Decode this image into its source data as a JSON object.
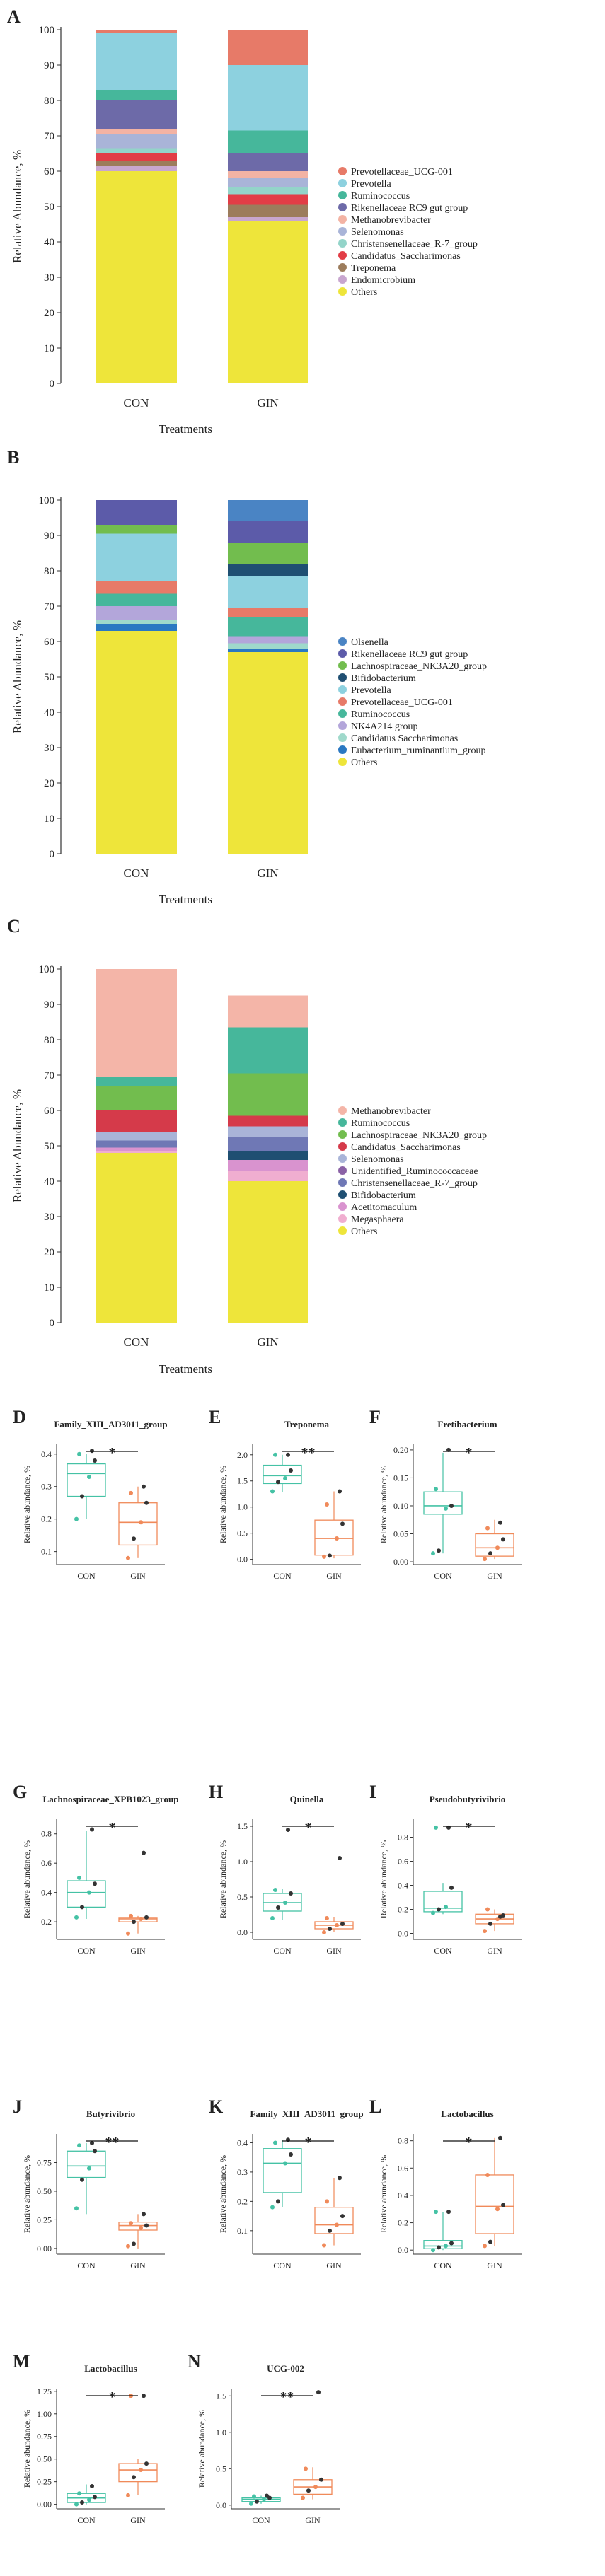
{
  "colors": {
    "CON": "#45c2a5",
    "GIN": "#f08a5a"
  },
  "chart_data": [
    {
      "type": "stacked-bar",
      "panel": "A",
      "xlabel": "Treatments",
      "ylabel": "Relative Abundance, %",
      "ylim": [
        0,
        100
      ],
      "yticks": [
        0,
        10,
        20,
        30,
        40,
        50,
        60,
        70,
        80,
        90,
        100
      ],
      "categories": [
        "CON",
        "GIN"
      ],
      "series": [
        {
          "name": "Others",
          "color": "#eee53a",
          "values": [
            60,
            46
          ]
        },
        {
          "name": "Endomicrobium",
          "color": "#c8a6cf",
          "values": [
            1.5,
            1
          ]
        },
        {
          "name": "Treponema",
          "color": "#9c7c5c",
          "values": [
            1.5,
            3.5
          ]
        },
        {
          "name": "Candidatus_Saccharimonas",
          "color": "#e23d46",
          "values": [
            2,
            3
          ]
        },
        {
          "name": "Christensenellaceae_R-7_group",
          "color": "#93d4c9",
          "values": [
            1.5,
            2
          ]
        },
        {
          "name": "Selenomonas",
          "color": "#a9b4d8",
          "values": [
            4,
            2.5
          ]
        },
        {
          "name": "Methanobrevibacter",
          "color": "#f3b3a4",
          "values": [
            1.5,
            2
          ]
        },
        {
          "name": "Rikenellaceae RC9 gut group",
          "color": "#6d6aa8",
          "values": [
            8,
            5
          ]
        },
        {
          "name": "Ruminococcus",
          "color": "#46b79b",
          "values": [
            3,
            6.5
          ]
        },
        {
          "name": "Prevotella",
          "color": "#8dd1df",
          "values": [
            16,
            18.5
          ]
        },
        {
          "name": "Prevotellaceae_UCG-001",
          "color": "#e77a68",
          "values": [
            1,
            10
          ]
        }
      ]
    },
    {
      "type": "stacked-bar",
      "panel": "B",
      "xlabel": "Treatments",
      "ylabel": "Relative Abundance, %",
      "ylim": [
        0,
        100
      ],
      "yticks": [
        0,
        10,
        20,
        30,
        40,
        50,
        60,
        70,
        80,
        90,
        100
      ],
      "categories": [
        "CON",
        "GIN"
      ],
      "series": [
        {
          "name": "Others",
          "color": "#eee53a",
          "values": [
            63,
            57
          ]
        },
        {
          "name": "Eubacterium_ruminantium_group",
          "color": "#2a78c2",
          "values": [
            2,
            1
          ]
        },
        {
          "name": "Candidatus Saccharimonas",
          "color": "#9fd9cb",
          "values": [
            1,
            1.5
          ]
        },
        {
          "name": "NK4A214 group",
          "color": "#b3a6da",
          "values": [
            4,
            2
          ]
        },
        {
          "name": "Ruminococcus",
          "color": "#46b79b",
          "values": [
            3.5,
            5.5
          ]
        },
        {
          "name": "Prevotellaceae_UCG-001",
          "color": "#e77a68",
          "values": [
            3.5,
            2.5
          ]
        },
        {
          "name": "Prevotella",
          "color": "#8dd1df",
          "values": [
            13.5,
            9
          ]
        },
        {
          "name": "Bifidobacterium",
          "color": "#1f4f72",
          "values": [
            0,
            3.5
          ]
        },
        {
          "name": "Lachnospiraceae_NK3A20_group",
          "color": "#72bd4e",
          "values": [
            2.5,
            6
          ]
        },
        {
          "name": "Rikenellaceae RC9 gut group",
          "color": "#5c5ba9",
          "values": [
            7,
            6
          ]
        },
        {
          "name": "Olsenella",
          "color": "#4a84c4",
          "values": [
            0,
            6
          ]
        }
      ]
    },
    {
      "type": "stacked-bar",
      "panel": "C",
      "xlabel": "Treatments",
      "ylabel": "Relative Abundance, %",
      "ylim": [
        0,
        100
      ],
      "yticks": [
        0,
        10,
        20,
        30,
        40,
        50,
        60,
        70,
        80,
        90,
        100
      ],
      "categories": [
        "CON",
        "GIN"
      ],
      "series": [
        {
          "name": "Others",
          "color": "#eee53a",
          "values": [
            48,
            40
          ]
        },
        {
          "name": "Megasphaera",
          "color": "#f0aed0",
          "values": [
            0.5,
            3
          ]
        },
        {
          "name": "Acetitomaculum",
          "color": "#d993cf",
          "values": [
            1,
            3
          ]
        },
        {
          "name": "Bifidobacterium",
          "color": "#1f4f72",
          "values": [
            0,
            2.5
          ]
        },
        {
          "name": "Christensenellaceae_R-7_group",
          "color": "#6f78b5",
          "values": [
            2,
            4
          ]
        },
        {
          "name": "Unidentified_Ruminococcaceae",
          "color": "#8b62a6",
          "values": [
            0,
            0
          ]
        },
        {
          "name": "Selenomonas",
          "color": "#a9b4d8",
          "values": [
            2.5,
            3
          ]
        },
        {
          "name": "Candidatus_Saccharimonas",
          "color": "#d53a4a",
          "values": [
            6,
            3
          ]
        },
        {
          "name": "Lachnospiraceae_NK3A20_group",
          "color": "#72bd4e",
          "values": [
            7,
            12
          ]
        },
        {
          "name": "Ruminococcus",
          "color": "#46b79b",
          "values": [
            2.5,
            13
          ]
        },
        {
          "name": "Methanobrevibacter",
          "color": "#f4b5a8",
          "values": [
            30.5,
            9
          ]
        }
      ]
    },
    {
      "type": "box",
      "panel": "D",
      "title": "Family_XIII_AD3011_group",
      "ylabel": "Relative abundance, %",
      "categories": [
        "CON",
        "GIN"
      ],
      "ylim": [
        0.06,
        0.43
      ],
      "yticks": [
        0.1,
        0.2,
        0.3,
        0.4
      ],
      "signif": "*",
      "groups": [
        {
          "name": "CON",
          "q1": 0.27,
          "median": 0.34,
          "q3": 0.37,
          "whisker_low": 0.2,
          "whisker_high": 0.4,
          "points": [
            0.2,
            0.27,
            0.33,
            0.38,
            0.4,
            0.41
          ]
        },
        {
          "name": "GIN",
          "q1": 0.12,
          "median": 0.19,
          "q3": 0.25,
          "whisker_low": 0.08,
          "whisker_high": 0.3,
          "points": [
            0.08,
            0.14,
            0.19,
            0.25,
            0.28,
            0.3
          ]
        }
      ]
    },
    {
      "type": "box",
      "panel": "E",
      "title": "Treponema",
      "ylabel": "Relative abundance, %",
      "categories": [
        "CON",
        "GIN"
      ],
      "ylim": [
        -0.1,
        2.2
      ],
      "yticks": [
        0.0,
        0.5,
        1.0,
        1.5,
        2.0
      ],
      "signif": "**",
      "groups": [
        {
          "name": "CON",
          "q1": 1.45,
          "median": 1.6,
          "q3": 1.8,
          "whisker_low": 1.28,
          "whisker_high": 2.0,
          "points": [
            1.3,
            1.48,
            1.55,
            1.7,
            2.0,
            2.0
          ]
        },
        {
          "name": "GIN",
          "q1": 0.08,
          "median": 0.4,
          "q3": 0.75,
          "whisker_low": 0.02,
          "whisker_high": 1.3,
          "points": [
            0.05,
            0.07,
            0.4,
            0.68,
            1.05,
            1.3
          ]
        }
      ]
    },
    {
      "type": "box",
      "panel": "F",
      "title": "Fretibacterium",
      "ylabel": "Relative abundance, %",
      "categories": [
        "CON",
        "GIN"
      ],
      "ylim": [
        -0.005,
        0.21
      ],
      "yticks": [
        0.0,
        0.05,
        0.1,
        0.15,
        0.2
      ],
      "signif": "*",
      "groups": [
        {
          "name": "CON",
          "q1": 0.085,
          "median": 0.1,
          "q3": 0.125,
          "whisker_low": 0.015,
          "whisker_high": 0.195,
          "points": [
            0.015,
            0.02,
            0.095,
            0.1,
            0.13,
            0.2
          ]
        },
        {
          "name": "GIN",
          "q1": 0.01,
          "median": 0.025,
          "q3": 0.05,
          "whisker_low": 0.005,
          "whisker_high": 0.075,
          "points": [
            0.005,
            0.015,
            0.025,
            0.04,
            0.06,
            0.07
          ]
        }
      ]
    },
    {
      "type": "box",
      "panel": "G",
      "title": "Lachnospiraceae_XPB1023_group",
      "ylabel": "Relative abundance, %",
      "categories": [
        "CON",
        "GIN"
      ],
      "ylim": [
        0.08,
        0.9
      ],
      "yticks": [
        0.2,
        0.4,
        0.6,
        0.8
      ],
      "signif": "*",
      "groups": [
        {
          "name": "CON",
          "q1": 0.3,
          "median": 0.4,
          "q3": 0.48,
          "whisker_low": 0.22,
          "whisker_high": 0.82,
          "points": [
            0.23,
            0.3,
            0.4,
            0.46,
            0.5,
            0.83
          ]
        },
        {
          "name": "GIN",
          "q1": 0.2,
          "median": 0.22,
          "q3": 0.23,
          "whisker_low": 0.12,
          "whisker_high": 0.24,
          "points": [
            0.12,
            0.2,
            0.22,
            0.23,
            0.24,
            0.67
          ]
        }
      ]
    },
    {
      "type": "box",
      "panel": "H",
      "title": "Quinella",
      "ylabel": "Relative abundance, %",
      "categories": [
        "CON",
        "GIN"
      ],
      "ylim": [
        -0.1,
        1.6
      ],
      "yticks": [
        0.0,
        0.5,
        1.0,
        1.5
      ],
      "signif": "*",
      "groups": [
        {
          "name": "CON",
          "q1": 0.3,
          "median": 0.42,
          "q3": 0.55,
          "whisker_low": 0.18,
          "whisker_high": 0.62,
          "points": [
            0.2,
            0.35,
            0.42,
            0.55,
            0.6,
            1.45
          ]
        },
        {
          "name": "GIN",
          "q1": 0.05,
          "median": 0.1,
          "q3": 0.15,
          "whisker_low": 0.0,
          "whisker_high": 0.22,
          "points": [
            0.0,
            0.05,
            0.1,
            0.12,
            0.2,
            1.05
          ]
        }
      ]
    },
    {
      "type": "box",
      "panel": "I",
      "title": "Pseudobutyrivibrio",
      "ylabel": "Relative abundance, %",
      "categories": [
        "CON",
        "GIN"
      ],
      "ylim": [
        -0.05,
        0.95
      ],
      "yticks": [
        0.0,
        0.2,
        0.4,
        0.6,
        0.8
      ],
      "signif": "*",
      "groups": [
        {
          "name": "CON",
          "q1": 0.18,
          "median": 0.21,
          "q3": 0.35,
          "whisker_low": 0.16,
          "whisker_high": 0.42,
          "points": [
            0.17,
            0.2,
            0.22,
            0.38,
            0.88,
            0.88
          ]
        },
        {
          "name": "GIN",
          "q1": 0.08,
          "median": 0.12,
          "q3": 0.16,
          "whisker_low": 0.02,
          "whisker_high": 0.2,
          "points": [
            0.02,
            0.08,
            0.12,
            0.15,
            0.2,
            0.14
          ]
        }
      ]
    },
    {
      "type": "box",
      "panel": "J",
      "title": "Butyrivibrio",
      "ylabel": "Relative abundance, %",
      "categories": [
        "CON",
        "GIN"
      ],
      "ylim": [
        -0.05,
        1.0
      ],
      "yticks": [
        0.0,
        0.25,
        0.5,
        0.75
      ],
      "signif": "**",
      "groups": [
        {
          "name": "CON",
          "q1": 0.62,
          "median": 0.72,
          "q3": 0.85,
          "whisker_low": 0.3,
          "whisker_high": 0.92,
          "points": [
            0.35,
            0.6,
            0.7,
            0.85,
            0.9,
            0.92
          ]
        },
        {
          "name": "GIN",
          "q1": 0.16,
          "median": 0.2,
          "q3": 0.23,
          "whisker_low": 0.0,
          "whisker_high": 0.3,
          "points": [
            0.02,
            0.04,
            0.18,
            0.2,
            0.22,
            0.3
          ]
        }
      ]
    },
    {
      "type": "box",
      "panel": "K",
      "title": "Family_XIII_AD3011_group",
      "ylabel": "Relative abundance, %",
      "categories": [
        "CON",
        "GIN"
      ],
      "ylim": [
        0.02,
        0.43
      ],
      "yticks": [
        0.1,
        0.2,
        0.3,
        0.4
      ],
      "signif": "*",
      "groups": [
        {
          "name": "CON",
          "q1": 0.23,
          "median": 0.33,
          "q3": 0.38,
          "whisker_low": 0.18,
          "whisker_high": 0.41,
          "points": [
            0.18,
            0.2,
            0.33,
            0.36,
            0.4,
            0.41
          ]
        },
        {
          "name": "GIN",
          "q1": 0.09,
          "median": 0.12,
          "q3": 0.18,
          "whisker_low": 0.05,
          "whisker_high": 0.28,
          "points": [
            0.05,
            0.1,
            0.12,
            0.15,
            0.2,
            0.28
          ]
        }
      ]
    },
    {
      "type": "box",
      "panel": "L",
      "title": "Lactobacillus",
      "ylabel": "Relative abundance, %",
      "categories": [
        "CON",
        "GIN"
      ],
      "ylim": [
        -0.03,
        0.85
      ],
      "yticks": [
        0.0,
        0.2,
        0.4,
        0.6,
        0.8
      ],
      "signif": "*",
      "groups": [
        {
          "name": "CON",
          "q1": 0.01,
          "median": 0.03,
          "q3": 0.07,
          "whisker_low": 0.0,
          "whisker_high": 0.28,
          "points": [
            0.0,
            0.02,
            0.03,
            0.05,
            0.28,
            0.28
          ]
        },
        {
          "name": "GIN",
          "q1": 0.12,
          "median": 0.32,
          "q3": 0.55,
          "whisker_low": 0.03,
          "whisker_high": 0.82,
          "points": [
            0.03,
            0.06,
            0.3,
            0.33,
            0.55,
            0.82
          ]
        }
      ]
    },
    {
      "type": "box",
      "panel": "M",
      "title": "Lactobacillus",
      "ylabel": "Relative abundance, %",
      "categories": [
        "CON",
        "GIN"
      ],
      "ylim": [
        -0.05,
        1.28
      ],
      "yticks": [
        0.0,
        0.25,
        0.5,
        0.75,
        1.0,
        1.25
      ],
      "signif": "*",
      "groups": [
        {
          "name": "CON",
          "q1": 0.02,
          "median": 0.07,
          "q3": 0.12,
          "whisker_low": 0.0,
          "whisker_high": 0.22,
          "points": [
            0.0,
            0.02,
            0.05,
            0.08,
            0.12,
            0.2
          ]
        },
        {
          "name": "GIN",
          "q1": 0.25,
          "median": 0.38,
          "q3": 0.45,
          "whisker_low": 0.1,
          "whisker_high": 0.5,
          "points": [
            0.1,
            0.3,
            0.38,
            0.45,
            1.2,
            1.2
          ]
        }
      ]
    },
    {
      "type": "box",
      "panel": "N",
      "title": "UCG-002",
      "ylabel": "Relative abundance, %",
      "categories": [
        "CON",
        "GIN"
      ],
      "ylim": [
        -0.05,
        1.6
      ],
      "yticks": [
        0.0,
        0.5,
        1.0,
        1.5
      ],
      "signif": "**",
      "groups": [
        {
          "name": "CON",
          "q1": 0.05,
          "median": 0.08,
          "q3": 0.1,
          "whisker_low": 0.02,
          "whisker_high": 0.13,
          "points": [
            0.02,
            0.05,
            0.08,
            0.1,
            0.12,
            0.13
          ]
        },
        {
          "name": "GIN",
          "q1": 0.15,
          "median": 0.25,
          "q3": 0.35,
          "whisker_low": 0.08,
          "whisker_high": 0.52,
          "points": [
            0.1,
            0.2,
            0.25,
            0.35,
            0.5,
            1.55
          ]
        }
      ]
    }
  ]
}
